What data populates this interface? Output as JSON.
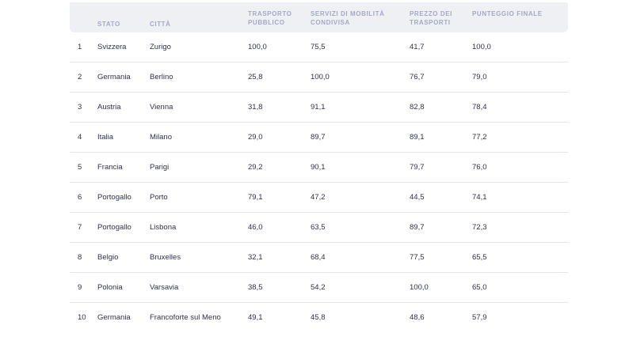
{
  "headers": [
    "",
    "STATO",
    "CITTÀ",
    "TRASPORTO PUBBLICO",
    "SERVIZI DI MOBILITÀ CONDIVISA",
    "PREZZO DEI TRASPORTI",
    "PUNTEGGIO FINALE"
  ],
  "rows": [
    [
      "1",
      "Svizzera",
      "Zurigo",
      "100,0",
      "75,5",
      "41,7",
      "100,0"
    ],
    [
      "2",
      "Germania",
      "Berlino",
      "25,8",
      "100,0",
      "76,7",
      "79,0"
    ],
    [
      "3",
      "Austria",
      "Vienna",
      "31,8",
      "91,1",
      "82,8",
      "78,4"
    ],
    [
      "4",
      "Italia",
      "Milano",
      "29,0",
      "89,7",
      "89,1",
      "77,2"
    ],
    [
      "5",
      "Francia",
      "Parigi",
      "29,2",
      "90,1",
      "79,7",
      "76,0"
    ],
    [
      "6",
      "Portogallo",
      "Porto",
      "79,1",
      "47,2",
      "44,5",
      "74,1"
    ],
    [
      "7",
      "Portogallo",
      "Lisbona",
      "46,0",
      "63,5",
      "89,7",
      "72,3"
    ],
    [
      "8",
      "Belgio",
      "Bruxelles",
      "32,1",
      "68,4",
      "77,5",
      "65,5"
    ],
    [
      "9",
      "Polonia",
      "Varsavia",
      "38,5",
      "54,2",
      "100,0",
      "65,0"
    ],
    [
      "10",
      "Germania",
      "Francoforte sul Meno",
      "49,1",
      "45,8",
      "48,6",
      "57,9"
    ]
  ]
}
